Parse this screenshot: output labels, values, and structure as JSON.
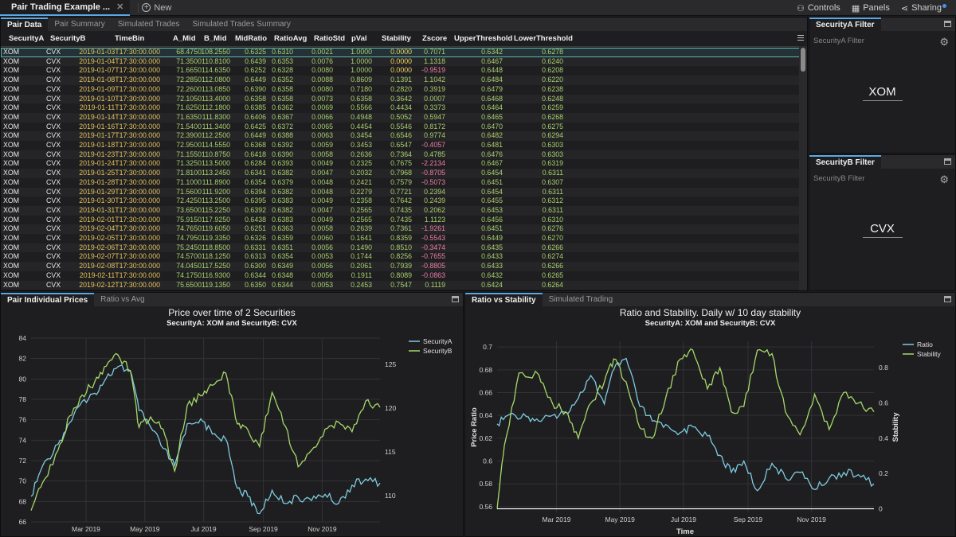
{
  "app": {
    "doc_tab_label": "Pair Trading Example ...",
    "doc_close": "✕",
    "new_label": "New",
    "controls_label": "Controls",
    "panels_label": "Panels",
    "sharing_label": "Sharing"
  },
  "grid": {
    "tabs": [
      "Pair Data",
      "Pair Summary",
      "Simulated Trades",
      "Simulated Trades Summary"
    ],
    "columns": [
      "SecurityA",
      "SecurityB",
      "TimeBin",
      "A_Mid",
      "B_Mid",
      "MidRatio",
      "RatioAvg",
      "RatioStd",
      "pVal",
      "Stability",
      "Zscore",
      "UpperThreshold",
      "LowerThreshold"
    ],
    "rows": [
      [
        "XOM",
        "CVX",
        "2019-01-03T17:30:00.000",
        "68.4750",
        "108.2550",
        "0.6325",
        "0.6310",
        "0.0021",
        "1.0000",
        "0.0000",
        "0.7071",
        "0.6342",
        "0.6278"
      ],
      [
        "XOM",
        "CVX",
        "2019-01-04T17:30:00.000",
        "71.3500",
        "110.8100",
        "0.6439",
        "0.6353",
        "0.0076",
        "1.0000",
        "0.0000",
        "1.1318",
        "0.6467",
        "0.6240"
      ],
      [
        "XOM",
        "CVX",
        "2019-01-07T17:30:00.000",
        "71.6650",
        "114.6350",
        "0.6252",
        "0.6328",
        "0.0080",
        "1.0000",
        "0.0000",
        "-0.9519",
        "0.6448",
        "0.6208"
      ],
      [
        "XOM",
        "CVX",
        "2019-01-08T17:30:00.000",
        "72.2850",
        "112.0800",
        "0.6449",
        "0.6352",
        "0.0088",
        "0.8609",
        "0.1391",
        "1.1042",
        "0.6484",
        "0.6220"
      ],
      [
        "XOM",
        "CVX",
        "2019-01-09T17:30:00.000",
        "72.2600",
        "113.0850",
        "0.6390",
        "0.6358",
        "0.0080",
        "0.7180",
        "0.2820",
        "0.3919",
        "0.6479",
        "0.6238"
      ],
      [
        "XOM",
        "CVX",
        "2019-01-10T17:30:00.000",
        "72.1050",
        "113.4000",
        "0.6358",
        "0.6358",
        "0.0073",
        "0.6358",
        "0.3642",
        "0.0007",
        "0.6468",
        "0.6248"
      ],
      [
        "XOM",
        "CVX",
        "2019-01-11T17:30:00.000",
        "71.6250",
        "112.1800",
        "0.6385",
        "0.6362",
        "0.0069",
        "0.5566",
        "0.4434",
        "0.3373",
        "0.6464",
        "0.6259"
      ],
      [
        "XOM",
        "CVX",
        "2019-01-14T17:30:00.000",
        "71.6350",
        "111.8300",
        "0.6406",
        "0.6367",
        "0.0066",
        "0.4948",
        "0.5052",
        "0.5947",
        "0.6465",
        "0.6268"
      ],
      [
        "XOM",
        "CVX",
        "2019-01-16T17:30:00.000",
        "71.5400",
        "111.3400",
        "0.6425",
        "0.6372",
        "0.0065",
        "0.4454",
        "0.5546",
        "0.8172",
        "0.6470",
        "0.6275"
      ],
      [
        "XOM",
        "CVX",
        "2019-01-17T17:30:00.000",
        "72.3900",
        "112.2500",
        "0.6449",
        "0.6388",
        "0.0063",
        "0.3454",
        "0.6546",
        "0.9774",
        "0.6482",
        "0.6294"
      ],
      [
        "XOM",
        "CVX",
        "2019-01-18T17:30:00.000",
        "72.9500",
        "114.5550",
        "0.6368",
        "0.6392",
        "0.0059",
        "0.3453",
        "0.6547",
        "-0.4057",
        "0.6481",
        "0.6303"
      ],
      [
        "XOM",
        "CVX",
        "2019-01-23T17:30:00.000",
        "71.1550",
        "110.8750",
        "0.6418",
        "0.6390",
        "0.0058",
        "0.2636",
        "0.7364",
        "0.4785",
        "0.6476",
        "0.6303"
      ],
      [
        "XOM",
        "CVX",
        "2019-01-24T17:30:00.000",
        "71.3250",
        "113.5000",
        "0.6284",
        "0.6393",
        "0.0049",
        "0.2325",
        "0.7675",
        "-2.2134",
        "0.6467",
        "0.6319"
      ],
      [
        "XOM",
        "CVX",
        "2019-01-25T17:30:00.000",
        "71.8100",
        "113.2450",
        "0.6341",
        "0.6382",
        "0.0047",
        "0.2032",
        "0.7968",
        "-0.8705",
        "0.6454",
        "0.6311"
      ],
      [
        "XOM",
        "CVX",
        "2019-01-28T17:30:00.000",
        "71.1000",
        "111.8900",
        "0.6354",
        "0.6379",
        "0.0048",
        "0.2421",
        "0.7579",
        "-0.5073",
        "0.6451",
        "0.6307"
      ],
      [
        "XOM",
        "CVX",
        "2019-01-29T17:30:00.000",
        "71.5600",
        "111.9200",
        "0.6394",
        "0.6382",
        "0.0048",
        "0.2279",
        "0.7721",
        "0.2394",
        "0.6454",
        "0.6311"
      ],
      [
        "XOM",
        "CVX",
        "2019-01-30T17:30:00.000",
        "72.4250",
        "113.2500",
        "0.6395",
        "0.6383",
        "0.0049",
        "0.2358",
        "0.7642",
        "0.2439",
        "0.6455",
        "0.6312"
      ],
      [
        "XOM",
        "CVX",
        "2019-01-31T17:30:00.000",
        "73.6500",
        "115.2250",
        "0.6392",
        "0.6382",
        "0.0047",
        "0.2565",
        "0.7435",
        "0.2062",
        "0.6453",
        "0.6311"
      ],
      [
        "XOM",
        "CVX",
        "2019-02-01T17:30:00.000",
        "75.9150",
        "117.9250",
        "0.6438",
        "0.6383",
        "0.0049",
        "0.2565",
        "0.7435",
        "1.1123",
        "0.6456",
        "0.6310"
      ],
      [
        "XOM",
        "CVX",
        "2019-02-04T17:30:00.000",
        "74.7650",
        "119.6050",
        "0.6251",
        "0.6363",
        "0.0058",
        "0.2639",
        "0.7361",
        "-1.9261",
        "0.6451",
        "0.6276"
      ],
      [
        "XOM",
        "CVX",
        "2019-02-05T17:30:00.000",
        "74.7950",
        "119.3350",
        "0.6326",
        "0.6359",
        "0.0060",
        "0.1641",
        "0.8359",
        "-0.5543",
        "0.6449",
        "0.6270"
      ],
      [
        "XOM",
        "CVX",
        "2019-02-06T17:30:00.000",
        "75.2450",
        "118.8500",
        "0.6331",
        "0.6351",
        "0.0056",
        "0.1490",
        "0.8510",
        "-0.3474",
        "0.6435",
        "0.6266"
      ],
      [
        "XOM",
        "CVX",
        "2019-02-07T17:30:00.000",
        "74.5700",
        "118.1250",
        "0.6313",
        "0.6354",
        "0.0053",
        "0.1744",
        "0.8256",
        "-0.7655",
        "0.6433",
        "0.6274"
      ],
      [
        "XOM",
        "CVX",
        "2019-02-08T17:30:00.000",
        "74.0450",
        "117.5250",
        "0.6300",
        "0.6349",
        "0.0056",
        "0.2061",
        "0.7939",
        "-0.8805",
        "0.6433",
        "0.6266"
      ],
      [
        "XOM",
        "CVX",
        "2019-02-11T17:30:00.000",
        "74.1750",
        "116.9300",
        "0.6344",
        "0.6348",
        "0.0056",
        "0.1911",
        "0.8089",
        "-0.0863",
        "0.6432",
        "0.6265"
      ],
      [
        "XOM",
        "CVX",
        "2019-02-12T17:30:00.000",
        "75.6500",
        "119.1350",
        "0.6350",
        "0.6344",
        "0.0053",
        "0.2453",
        "0.7547",
        "0.1119",
        "0.6424",
        "0.6264"
      ]
    ]
  },
  "filterA": {
    "tab": "SecurityA Filter",
    "hint": "SecurityA Filter",
    "value": "XOM"
  },
  "filterB": {
    "tab": "SecurityB Filter",
    "hint": "SecurityB Filter",
    "value": "CVX"
  },
  "priceChart": {
    "tabs": [
      "Pair Individual Prices",
      "Ratio vs Avg"
    ],
    "title": "Price over time of 2 Securities",
    "subtitle": "SecurityA: XOM and SecurityB: CVX"
  },
  "ratioChart": {
    "tabs": [
      "Ratio vs Stability",
      "Simulated Trading"
    ],
    "title": "Ratio and Stability. Daily w/ 10 day stability",
    "subtitle": "SecurityA: XOM and SecurityB: CVX"
  },
  "chart_data": [
    {
      "type": "line",
      "title": "Price over time of 2 Securities",
      "subtitle": "SecurityA: XOM and SecurityB: CVX",
      "xlabel": "",
      "x_ticks": [
        "Mar 2019",
        "May 2019",
        "Jul 2019",
        "Sep 2019",
        "Nov 2019"
      ],
      "x_range": [
        "2019-01-03",
        "2019-12-31"
      ],
      "ylim_left": [
        66,
        84
      ],
      "y_ticks_left": [
        66,
        68,
        70,
        72,
        74,
        76,
        78,
        80,
        82,
        84
      ],
      "ylim_right": [
        107,
        128
      ],
      "y_ticks_right": [
        110,
        115,
        120,
        125
      ],
      "legend": "top-right",
      "grid": true,
      "series": [
        {
          "name": "SecurityA",
          "axis": "left",
          "color": "#7ecbe0",
          "x": [
            "2019-01-03",
            "2019-01-15",
            "2019-01-31",
            "2019-02-12",
            "2019-02-25",
            "2019-03-10",
            "2019-03-22",
            "2019-04-03",
            "2019-04-16",
            "2019-04-25",
            "2019-05-07",
            "2019-05-20",
            "2019-06-01",
            "2019-06-14",
            "2019-06-28",
            "2019-07-10",
            "2019-07-24",
            "2019-08-05",
            "2019-08-16",
            "2019-08-28",
            "2019-09-10",
            "2019-09-24",
            "2019-10-07",
            "2019-10-21",
            "2019-11-04",
            "2019-11-18",
            "2019-12-02",
            "2019-12-16",
            "2019-12-31"
          ],
          "y": [
            68.5,
            71.5,
            73.6,
            75.7,
            77.8,
            78.6,
            80.1,
            81.2,
            80.8,
            76.9,
            75.3,
            73.2,
            71.5,
            75.6,
            76.1,
            74.6,
            74.1,
            69.3,
            68.5,
            66.8,
            69.1,
            67.8,
            68.4,
            68.1,
            68.7,
            67.8,
            69.6,
            70.2,
            69.8
          ]
        },
        {
          "name": "SecurityB",
          "axis": "right",
          "color": "#a6d96a",
          "x": [
            "2019-01-03",
            "2019-01-15",
            "2019-01-31",
            "2019-02-12",
            "2019-02-25",
            "2019-03-10",
            "2019-03-22",
            "2019-04-03",
            "2019-04-16",
            "2019-04-25",
            "2019-05-07",
            "2019-05-20",
            "2019-06-01",
            "2019-06-14",
            "2019-06-28",
            "2019-07-10",
            "2019-07-24",
            "2019-08-05",
            "2019-08-16",
            "2019-08-28",
            "2019-09-10",
            "2019-09-24",
            "2019-10-07",
            "2019-10-21",
            "2019-11-04",
            "2019-11-18",
            "2019-12-02",
            "2019-12-16",
            "2019-12-31"
          ],
          "y": [
            108.3,
            111.5,
            115.2,
            119.1,
            121.5,
            123.0,
            124.8,
            126.1,
            124.3,
            117.8,
            119.0,
            117.6,
            112.8,
            120.3,
            121.4,
            122.6,
            124.0,
            118.2,
            117.5,
            115.6,
            121.8,
            117.9,
            113.3,
            115.2,
            117.6,
            118.4,
            117.3,
            120.8,
            120.1
          ]
        }
      ]
    },
    {
      "type": "line",
      "title": "Ratio and Stability. Daily w/ 10 day stability",
      "subtitle": "SecurityA: XOM and SecurityB: CVX",
      "xlabel": "Time",
      "ylabel": "Price Ratio",
      "ylabel_right": "Stability",
      "x_ticks": [
        "Mar 2019",
        "May 2019",
        "Jul 2019",
        "Sep 2019",
        "Nov 2019"
      ],
      "x_range": [
        "2019-01-03",
        "2019-12-31"
      ],
      "ylim_left": [
        0.555,
        0.705
      ],
      "y_ticks_left": [
        0.56,
        0.58,
        0.6,
        0.62,
        0.64,
        0.66,
        0.68,
        0.7
      ],
      "ylim_right": [
        -0.02,
        0.95
      ],
      "y_ticks_right": [
        0,
        0.2,
        0.4,
        0.6,
        0.8
      ],
      "legend": "top-right",
      "grid": true,
      "series": [
        {
          "name": "Ratio",
          "axis": "left",
          "color": "#7ecbe0",
          "x": [
            "2019-01-03",
            "2019-01-15",
            "2019-01-31",
            "2019-02-12",
            "2019-02-25",
            "2019-03-10",
            "2019-03-22",
            "2019-04-03",
            "2019-04-16",
            "2019-04-25",
            "2019-05-07",
            "2019-05-20",
            "2019-06-01",
            "2019-06-14",
            "2019-06-28",
            "2019-07-10",
            "2019-07-24",
            "2019-08-05",
            "2019-08-16",
            "2019-08-28",
            "2019-09-10",
            "2019-09-24",
            "2019-10-07",
            "2019-10-21",
            "2019-11-04",
            "2019-11-18",
            "2019-12-02",
            "2019-12-16",
            "2019-12-31"
          ],
          "y": [
            0.6325,
            0.641,
            0.639,
            0.635,
            0.64,
            0.643,
            0.655,
            0.675,
            0.65,
            0.68,
            0.69,
            0.648,
            0.635,
            0.632,
            0.625,
            0.63,
            0.622,
            0.605,
            0.59,
            0.6,
            0.574,
            0.598,
            0.585,
            0.59,
            0.575,
            0.585,
            0.59,
            0.588,
            0.58
          ]
        },
        {
          "name": "Stability",
          "axis": "right",
          "color": "#a6d96a",
          "x": [
            "2019-01-03",
            "2019-01-10",
            "2019-01-24",
            "2019-02-12",
            "2019-02-25",
            "2019-03-10",
            "2019-03-22",
            "2019-04-03",
            "2019-04-16",
            "2019-04-25",
            "2019-05-07",
            "2019-05-20",
            "2019-06-01",
            "2019-06-14",
            "2019-06-28",
            "2019-07-10",
            "2019-07-24",
            "2019-08-05",
            "2019-08-16",
            "2019-08-28",
            "2019-09-10",
            "2019-09-24",
            "2019-10-07",
            "2019-10-21",
            "2019-11-04",
            "2019-11-18",
            "2019-12-02",
            "2019-12-16",
            "2019-12-31"
          ],
          "y": [
            0.0,
            0.36,
            0.77,
            0.76,
            0.6,
            0.55,
            0.4,
            0.6,
            0.72,
            0.85,
            0.72,
            0.46,
            0.4,
            0.63,
            0.85,
            0.9,
            0.68,
            0.8,
            0.55,
            0.58,
            0.9,
            0.88,
            0.55,
            0.42,
            0.65,
            0.45,
            0.66,
            0.6,
            0.55
          ]
        }
      ]
    }
  ]
}
